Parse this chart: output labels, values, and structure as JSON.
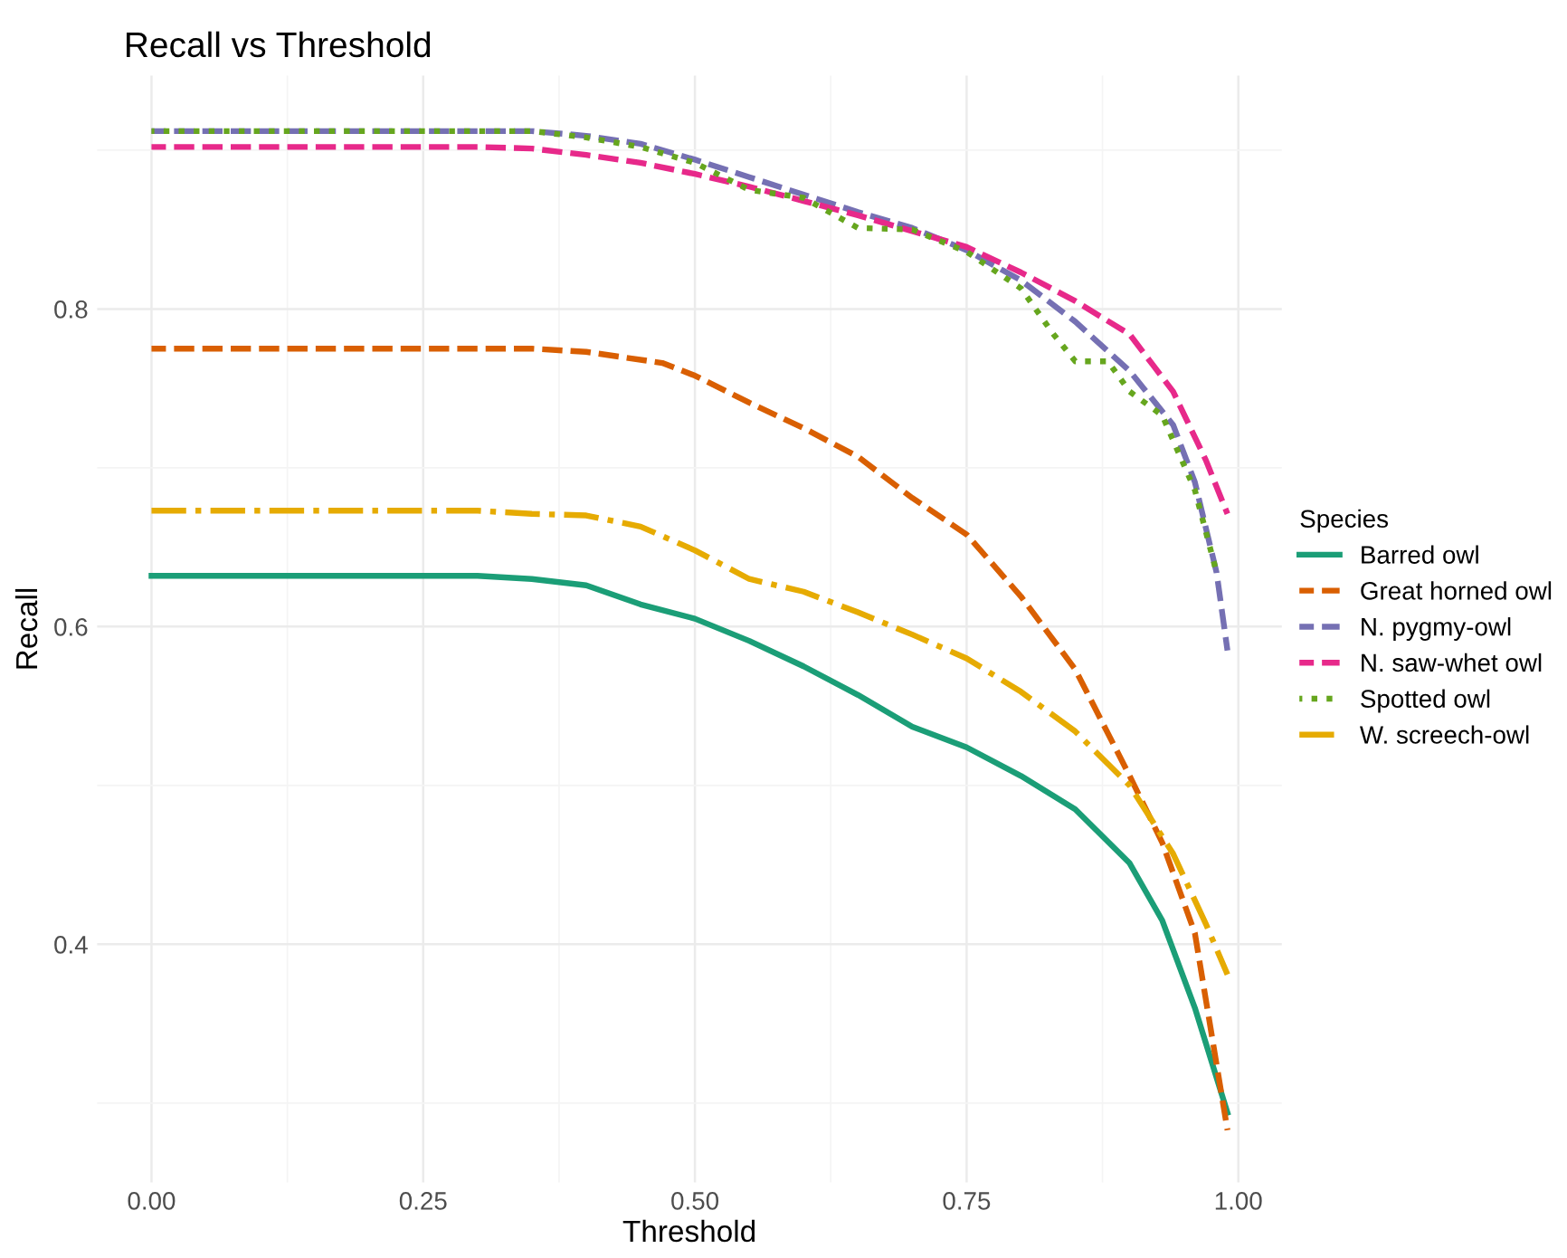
{
  "chart_data": {
    "type": "line",
    "title": "Recall vs Threshold",
    "xlabel": "Threshold",
    "ylabel": "Recall",
    "legend_title": "Species",
    "legend": "right",
    "grid": true,
    "xlim": [
      -0.05,
      1.04
    ],
    "ylim": [
      0.25,
      0.947
    ],
    "xticks": [
      {
        "value": 0,
        "label": "0.00"
      },
      {
        "value": 0.25,
        "label": "0.25"
      },
      {
        "value": 0.5,
        "label": "0.50"
      },
      {
        "value": 0.75,
        "label": "0.75"
      },
      {
        "value": 1,
        "label": "1.00"
      }
    ],
    "yticks": [
      {
        "value": 0.4,
        "label": "0.4"
      },
      {
        "value": 0.6,
        "label": "0.6"
      },
      {
        "value": 0.8,
        "label": "0.8"
      }
    ],
    "series": [
      {
        "name": "Barred owl",
        "color": "#1b9e77",
        "line_style": "solid",
        "x": [
          0,
          0.3,
          0.35,
          0.4,
          0.45,
          0.5,
          0.55,
          0.6,
          0.65,
          0.7,
          0.75,
          0.8,
          0.85,
          0.9,
          0.93,
          0.96,
          0.99
        ],
        "values": [
          0.632,
          0.632,
          0.63,
          0.626,
          0.614,
          0.605,
          0.591,
          0.575,
          0.557,
          0.537,
          0.524,
          0.506,
          0.485,
          0.451,
          0.415,
          0.36,
          0.294
        ]
      },
      {
        "name": "Great horned owl",
        "color": "#d95f02",
        "line_style": "dashed",
        "x": [
          0,
          0.35,
          0.4,
          0.47,
          0.5,
          0.55,
          0.6,
          0.65,
          0.7,
          0.75,
          0.8,
          0.85,
          0.9,
          0.93,
          0.96,
          0.99
        ],
        "values": [
          0.775,
          0.775,
          0.773,
          0.766,
          0.758,
          0.741,
          0.725,
          0.707,
          0.681,
          0.658,
          0.619,
          0.573,
          0.506,
          0.464,
          0.407,
          0.283
        ]
      },
      {
        "name": "N. pygmy-owl",
        "color": "#7570b3",
        "line_style": "dashed",
        "x": [
          0,
          0.35,
          0.4,
          0.45,
          0.5,
          0.55,
          0.6,
          0.65,
          0.7,
          0.75,
          0.8,
          0.85,
          0.9,
          0.94,
          0.96,
          0.98,
          0.99
        ],
        "values": [
          0.912,
          0.912,
          0.909,
          0.904,
          0.894,
          0.883,
          0.872,
          0.861,
          0.851,
          0.837,
          0.818,
          0.792,
          0.761,
          0.727,
          0.691,
          0.634,
          0.585
        ]
      },
      {
        "name": "N. saw-whet owl",
        "color": "#e7298a",
        "line_style": "dashed",
        "x": [
          0,
          0.3,
          0.35,
          0.4,
          0.45,
          0.5,
          0.55,
          0.6,
          0.65,
          0.7,
          0.75,
          0.8,
          0.85,
          0.9,
          0.94,
          0.97,
          0.99
        ],
        "values": [
          0.902,
          0.902,
          0.901,
          0.897,
          0.892,
          0.885,
          0.877,
          0.868,
          0.859,
          0.849,
          0.839,
          0.823,
          0.805,
          0.784,
          0.748,
          0.705,
          0.671
        ]
      },
      {
        "name": "Spotted owl",
        "color": "#66a61e",
        "line_style": "dotted",
        "x": [
          0,
          0.35,
          0.4,
          0.45,
          0.5,
          0.55,
          0.6,
          0.65,
          0.7,
          0.75,
          0.8,
          0.83,
          0.85,
          0.88,
          0.9,
          0.93,
          0.96,
          0.98
        ],
        "values": [
          0.912,
          0.912,
          0.908,
          0.902,
          0.892,
          0.875,
          0.87,
          0.851,
          0.85,
          0.836,
          0.813,
          0.784,
          0.767,
          0.767,
          0.748,
          0.733,
          0.686,
          0.634
        ]
      },
      {
        "name": "W. screech-owl",
        "color": "#e6ab02",
        "line_style": "dashdot",
        "x": [
          0,
          0.3,
          0.35,
          0.4,
          0.45,
          0.5,
          0.55,
          0.6,
          0.65,
          0.7,
          0.75,
          0.8,
          0.85,
          0.9,
          0.94,
          0.97,
          0.99
        ],
        "values": [
          0.673,
          0.673,
          0.671,
          0.67,
          0.663,
          0.648,
          0.63,
          0.622,
          0.609,
          0.595,
          0.58,
          0.559,
          0.534,
          0.5,
          0.457,
          0.413,
          0.381
        ]
      }
    ]
  }
}
